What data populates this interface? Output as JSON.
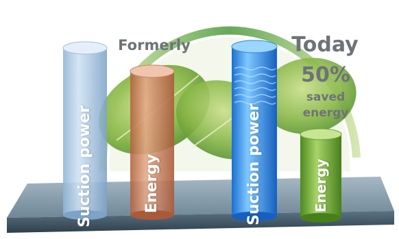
{
  "formerly": {
    "heading": "Formerly",
    "bar1_label": "Suction power",
    "bar2_label": "Energy"
  },
  "today": {
    "heading": "Today",
    "percent": "50%",
    "saved_line1": "saved",
    "saved_line2": "energy",
    "bar1_label": "Suction power",
    "bar2_label": "Energy"
  },
  "colors": {
    "heading_gray": "#6e7378",
    "leaf_green": "#7fae3a",
    "arc_green": "#3f8f3a",
    "platform": "#7d96a6"
  }
}
